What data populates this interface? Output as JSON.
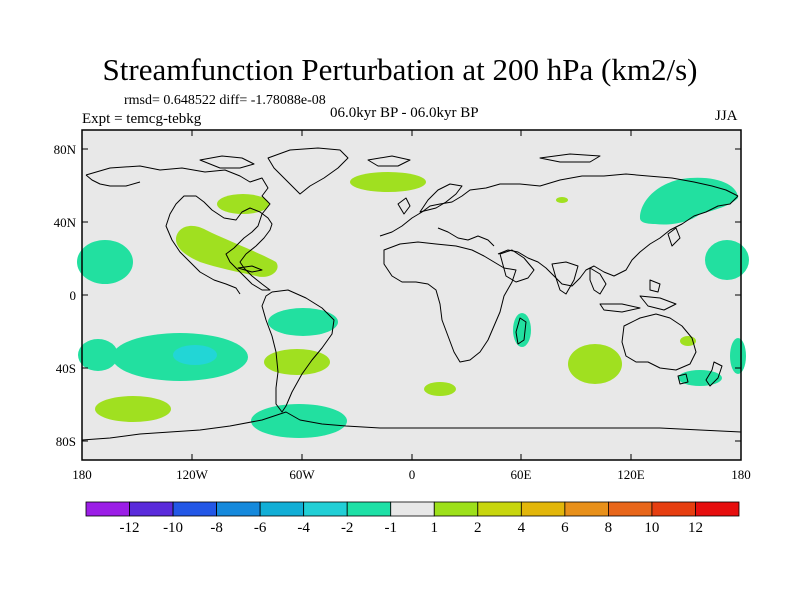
{
  "title": "Streamfunction Perturbation at 200 hPa (km2/s)",
  "stats": "rmsd= 0.648522 diff= -1.78088e-08",
  "expt": "Expt = temcg-tebkg",
  "period": "06.0kyr BP - 06.0kyr BP",
  "season": "JJA",
  "axes": {
    "x_ticks": [
      "180",
      "120W",
      "60W",
      "0",
      "60E",
      "120E",
      "180"
    ],
    "y_ticks": [
      "80N",
      "40N",
      "0",
      "40S",
      "80S"
    ]
  },
  "colorbar": {
    "labels": [
      "-12",
      "-10",
      "-8",
      "-6",
      "-4",
      "-2",
      "-1",
      "1",
      "2",
      "4",
      "6",
      "8",
      "10",
      "12"
    ],
    "colors": [
      "#9b1ee6",
      "#5a2bdb",
      "#2357e6",
      "#1589dc",
      "#12aed6",
      "#22cfd6",
      "#1ee0a6",
      "#e8e8e8",
      "#9de01a",
      "#c8d60e",
      "#e2b60a",
      "#e8901a",
      "#e8661a",
      "#e63e10",
      "#e60e0e"
    ]
  },
  "colors": {
    "background": "#e8e8e8",
    "neg_light": "#22e0a0",
    "neg_mid": "#22d6d6",
    "pos_light": "#a0e020"
  }
}
